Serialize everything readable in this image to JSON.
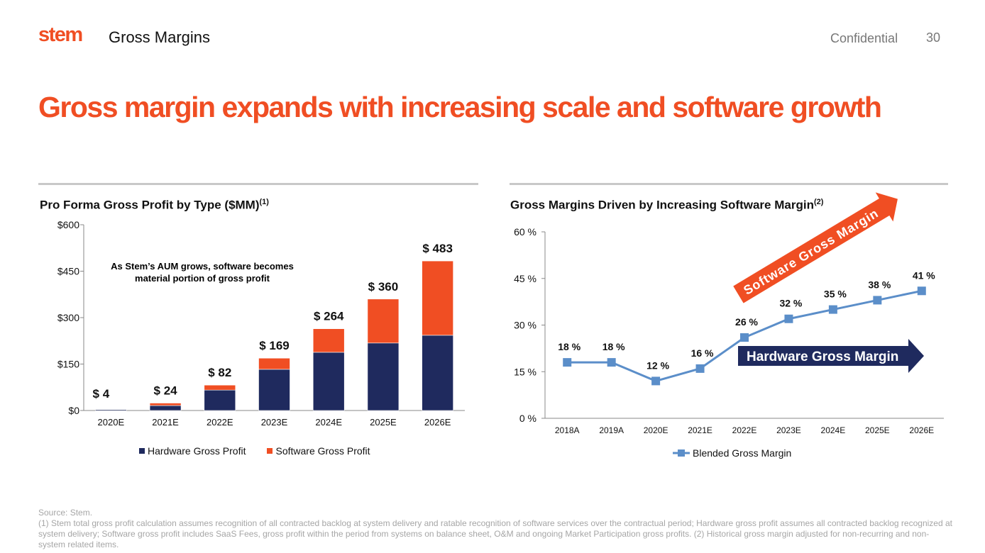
{
  "header": {
    "logo": "stem",
    "section": "Gross Margins",
    "confidential": "Confidential",
    "page_number": "30"
  },
  "headline": "Gross margin expands with increasing scale and software growth",
  "colors": {
    "brand_orange": "#f04e23",
    "hardware_navy": "#1f2a5e",
    "line_blue": "#5b8ec9"
  },
  "chart_data": [
    {
      "type": "bar",
      "stacked": true,
      "title": "Pro Forma Gross Profit by Type ($MM)",
      "title_sup": "(1)",
      "categories": [
        "2020E",
        "2021E",
        "2022E",
        "2023E",
        "2024E",
        "2025E",
        "2026E"
      ],
      "series": [
        {
          "name": "Hardware Gross Profit",
          "color": "#1f2a5e",
          "values": [
            3,
            16,
            66,
            133,
            188,
            218,
            243
          ]
        },
        {
          "name": "Software Gross Profit",
          "color": "#f04e23",
          "values": [
            1,
            8,
            16,
            36,
            76,
            142,
            240
          ]
        }
      ],
      "data_labels": [
        "$ 4",
        "$ 24",
        "$ 82",
        "$ 169",
        "$ 264",
        "$ 360",
        "$ 483"
      ],
      "totals": [
        4,
        24,
        82,
        169,
        264,
        360,
        483
      ],
      "ylim": [
        0,
        600
      ],
      "yticks": [
        0,
        150,
        300,
        450,
        600
      ],
      "ytick_labels": [
        "$0",
        "$150",
        "$300",
        "$450",
        "$600"
      ],
      "annotation": "As Stem’s AUM grows, software becomes material portion of gross profit",
      "legend_position": "bottom",
      "grid": false
    },
    {
      "type": "line",
      "title": "Gross Margins Driven by Increasing Software Margin",
      "title_sup": "(2)",
      "categories": [
        "2018A",
        "2019A",
        "2020E",
        "2021E",
        "2022E",
        "2023E",
        "2024E",
        "2025E",
        "2026E"
      ],
      "series": [
        {
          "name": "Blended Gross Margin",
          "color": "#5b8ec9",
          "marker": "square",
          "values": [
            18,
            18,
            12,
            16,
            26,
            32,
            35,
            38,
            41
          ]
        }
      ],
      "data_labels": [
        "18 %",
        "18 %",
        "12 %",
        "16 %",
        "26 %",
        "32 %",
        "35 %",
        "38 %",
        "41 %"
      ],
      "ylim": [
        0,
        60
      ],
      "yticks": [
        0,
        15,
        30,
        45,
        60
      ],
      "ytick_labels": [
        "0 %",
        "15 %",
        "30 %",
        "45 %",
        "60 %"
      ],
      "annotations": {
        "software_arrow": "Software Gross Margin",
        "hardware_arrow": "Hardware Gross Margin"
      },
      "legend_position": "bottom",
      "grid": false
    }
  ],
  "footer": {
    "source": "Source: Stem.",
    "notes": "(1) Stem total gross profit calculation assumes recognition of all contracted backlog at system delivery and ratable recognition of software services over the contractual period; Hardware gross profit assumes all contracted backlog recognized at system delivery; Software gross profit includes SaaS Fees, gross profit within the period from systems on balance sheet, O&M and ongoing Market Participation gross profits. (2) Historical gross margin adjusted for non-recurring and non-system related items."
  }
}
